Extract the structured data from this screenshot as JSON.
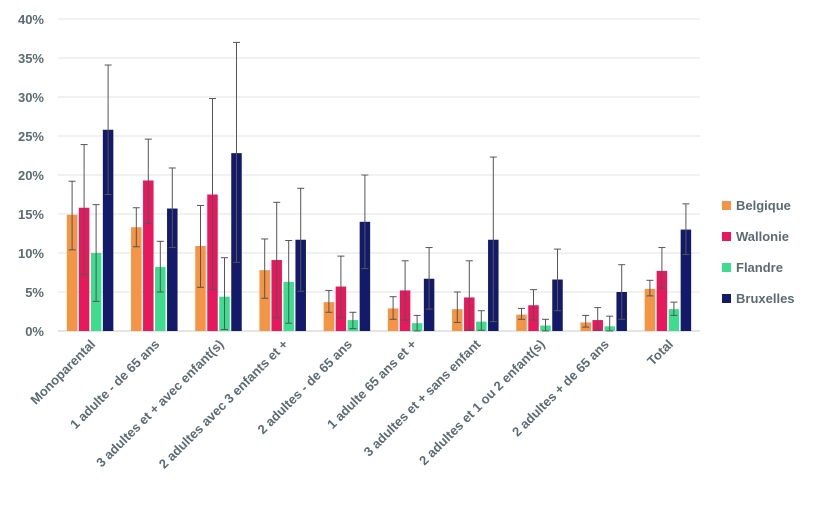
{
  "chart_data": {
    "type": "bar",
    "title": "",
    "xlabel": "",
    "ylabel": "",
    "ylim": [
      0,
      0.4
    ],
    "y_ticks": [
      "0%",
      "5%",
      "10%",
      "15%",
      "20%",
      "25%",
      "30%",
      "35%",
      "40%"
    ],
    "grid": true,
    "legend_position": "right",
    "error_bars": true,
    "categories": [
      "Monoparental",
      "1 adulte - de 65 ans",
      "3 adultes et + avec enfant(s)",
      "2 adultes avec 3 enfants et +",
      "2 adultes - de 65 ans",
      "1 adulte 65 ans et +",
      "3 adultes et + sans enfant",
      "2 adultes et 1 ou 2 enfant(s)",
      "2 adultes + de 65 ans",
      "Total"
    ],
    "series": [
      {
        "name": "Belgique",
        "color": "#f39545",
        "values": [
          0.149,
          0.133,
          0.109,
          0.078,
          0.037,
          0.029,
          0.028,
          0.021,
          0.011,
          0.054
        ],
        "error_low": [
          0.104,
          0.108,
          0.056,
          0.042,
          0.024,
          0.015,
          0.011,
          0.015,
          0.005,
          0.045
        ],
        "error_high": [
          0.192,
          0.158,
          0.161,
          0.118,
          0.052,
          0.044,
          0.05,
          0.029,
          0.02,
          0.065
        ]
      },
      {
        "name": "Wallonie",
        "color": "#e8185f",
        "values": [
          0.158,
          0.193,
          0.175,
          0.091,
          0.057,
          0.052,
          0.043,
          0.033,
          0.014,
          0.077
        ],
        "error_low": [
          0.072,
          0.138,
          0.053,
          0.017,
          0.017,
          0.014,
          0.001,
          0.014,
          0.001,
          0.055
        ],
        "error_high": [
          0.239,
          0.246,
          0.298,
          0.165,
          0.096,
          0.09,
          0.09,
          0.053,
          0.03,
          0.107
        ]
      },
      {
        "name": "Flandre",
        "color": "#3ddc8e",
        "values": [
          0.1,
          0.082,
          0.044,
          0.063,
          0.014,
          0.01,
          0.012,
          0.007,
          0.006,
          0.028
        ],
        "error_low": [
          0.038,
          0.05,
          0.002,
          0.01,
          0.003,
          0.0,
          0.001,
          0.0,
          0.0,
          0.02
        ],
        "error_high": [
          0.162,
          0.115,
          0.094,
          0.116,
          0.024,
          0.02,
          0.026,
          0.015,
          0.019,
          0.037
        ]
      },
      {
        "name": "Bruxelles",
        "color": "#131a6a",
        "values": [
          0.258,
          0.157,
          0.228,
          0.117,
          0.14,
          0.067,
          0.117,
          0.066,
          0.05,
          0.13
        ],
        "error_low": [
          0.175,
          0.107,
          0.088,
          0.051,
          0.08,
          0.028,
          0.012,
          0.026,
          0.015,
          0.098
        ],
        "error_high": [
          0.341,
          0.209,
          0.37,
          0.183,
          0.2,
          0.107,
          0.223,
          0.105,
          0.085,
          0.163
        ]
      }
    ]
  }
}
